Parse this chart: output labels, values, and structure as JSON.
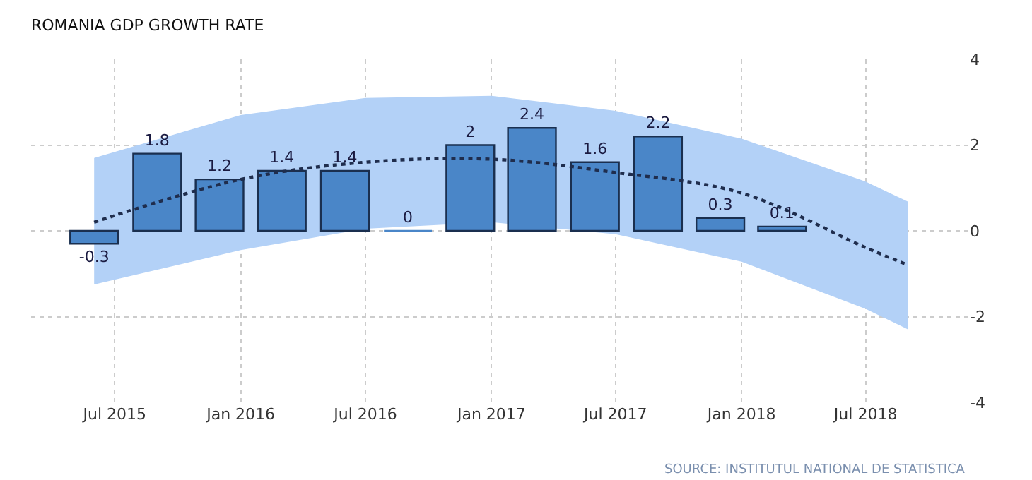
{
  "chart_data": {
    "type": "bar",
    "title": "ROMANIA GDP GROWTH RATE",
    "x": [
      "2015-06-01",
      "2015-09-01",
      "2015-12-01",
      "2016-03-01",
      "2016-06-01",
      "2016-09-01",
      "2016-12-01",
      "2017-03-01",
      "2017-06-01",
      "2017-09-01",
      "2017-12-01",
      "2018-03-01"
    ],
    "series": [
      {
        "color": "#4a86c8",
        "values": [
          -0.3,
          1.8,
          1.2,
          1.4,
          1.4,
          0,
          2,
          2.4,
          1.6,
          2.2,
          0.3,
          0.1
        ],
        "value_labels": [
          "-0.3",
          "1.8",
          "1.2",
          "1.4",
          "1.4",
          "0",
          "2",
          "2.4",
          "1.6",
          "2.2",
          "0.3",
          "0.1"
        ]
      },
      {
        "type": "line",
        "color": "#1f2d4d",
        "line_style": "dotted",
        "x": [
          "2015-06-01",
          "2016-01-01",
          "2016-07-01",
          "2017-01-01",
          "2017-07-01",
          "2018-01-01",
          "2018-07-01",
          "2018-09-01"
        ],
        "values": [
          0.2,
          1.2,
          1.6,
          1.67,
          1.36,
          0.88,
          -0.39,
          -0.8
        ],
        "lower": [
          -1.25,
          -0.45,
          0.05,
          0.2,
          -0.08,
          -0.72,
          -1.82,
          -2.3
        ],
        "upper": [
          1.7,
          2.7,
          3.1,
          3.15,
          2.8,
          2.15,
          1.15,
          0.68
        ]
      }
    ],
    "xlim": [
      "2015-03-01",
      "2018-11-28"
    ],
    "xticks": [
      {
        "value": "2015-07-01",
        "label": "Jul 2015"
      },
      {
        "value": "2016-01-01",
        "label": "Jan 2016"
      },
      {
        "value": "2016-07-01",
        "label": "Jul 2016"
      },
      {
        "value": "2017-01-01",
        "label": "Jan 2017"
      },
      {
        "value": "2017-07-01",
        "label": "Jul 2017"
      },
      {
        "value": "2018-01-01",
        "label": "Jan 2018"
      },
      {
        "value": "2018-07-01",
        "label": "Jul 2018"
      }
    ],
    "ylim": [
      -4,
      4
    ],
    "yticks": [
      -4,
      -2,
      0,
      2,
      4
    ],
    "grid": true,
    "annotations": [
      "SOURCE: INSTITUTUL NATIONAL DE STATISTICA"
    ]
  }
}
